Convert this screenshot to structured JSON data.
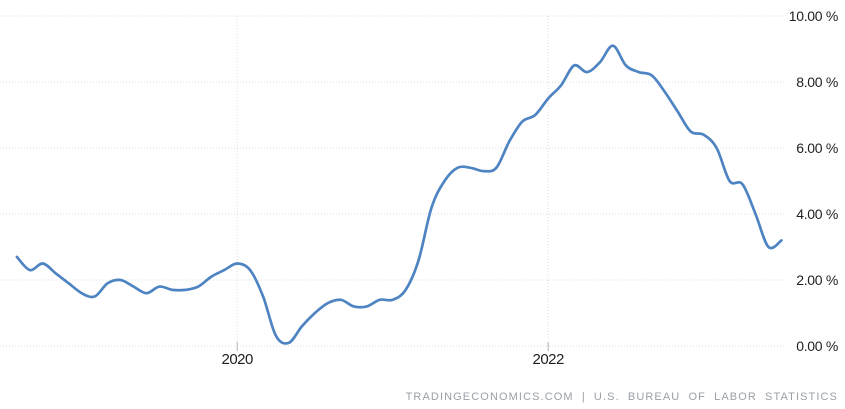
{
  "chart_data": {
    "type": "line",
    "title": "",
    "xlabel": "",
    "ylabel": "",
    "ylim": [
      0,
      10
    ],
    "grid": "dotted",
    "legend_position": "none",
    "line_color": "#4e84c2",
    "grid_color": "#dcdcdc",
    "x": [
      "2018-08",
      "2018-09",
      "2018-10",
      "2018-11",
      "2018-12",
      "2019-01",
      "2019-02",
      "2019-03",
      "2019-04",
      "2019-05",
      "2019-06",
      "2019-07",
      "2019-08",
      "2019-09",
      "2019-10",
      "2019-11",
      "2019-12",
      "2020-01",
      "2020-02",
      "2020-03",
      "2020-04",
      "2020-05",
      "2020-06",
      "2020-07",
      "2020-08",
      "2020-09",
      "2020-10",
      "2020-11",
      "2020-12",
      "2021-01",
      "2021-02",
      "2021-03",
      "2021-04",
      "2021-05",
      "2021-06",
      "2021-07",
      "2021-08",
      "2021-09",
      "2021-10",
      "2021-11",
      "2021-12",
      "2022-01",
      "2022-02",
      "2022-03",
      "2022-04",
      "2022-05",
      "2022-06",
      "2022-07",
      "2022-08",
      "2022-09",
      "2022-10",
      "2022-11",
      "2022-12",
      "2023-01",
      "2023-02",
      "2023-03",
      "2023-04",
      "2023-05",
      "2023-06",
      "2023-07"
    ],
    "values": [
      2.7,
      2.3,
      2.5,
      2.2,
      1.9,
      1.6,
      1.5,
      1.9,
      2.0,
      1.8,
      1.6,
      1.8,
      1.7,
      1.7,
      1.8,
      2.1,
      2.3,
      2.5,
      2.3,
      1.5,
      0.3,
      0.1,
      0.6,
      1.0,
      1.3,
      1.4,
      1.2,
      1.2,
      1.4,
      1.4,
      1.7,
      2.6,
      4.2,
      5.0,
      5.4,
      5.4,
      5.3,
      5.4,
      6.2,
      6.8,
      7.0,
      7.5,
      7.9,
      8.5,
      8.3,
      8.6,
      9.1,
      8.5,
      8.3,
      8.2,
      7.7,
      7.1,
      6.5,
      6.4,
      6.0,
      5.0,
      4.9,
      4.0,
      3.0,
      3.2
    ],
    "y_ticks": [
      {
        "value": 0,
        "label": "0.00 %"
      },
      {
        "value": 2,
        "label": "2.00 %"
      },
      {
        "value": 4,
        "label": "4.00 %"
      },
      {
        "value": 6,
        "label": "6.00 %"
      },
      {
        "value": 8,
        "label": "8.00 %"
      },
      {
        "value": 10,
        "label": "10.00 %"
      }
    ],
    "x_ticks": [
      {
        "label": "2020",
        "x_index": 17
      },
      {
        "label": "2022",
        "x_index": 41
      }
    ]
  },
  "footer": {
    "attribution": "TRADINGECONOMICS.COM | U.S. BUREAU OF LABOR STATISTICS"
  }
}
